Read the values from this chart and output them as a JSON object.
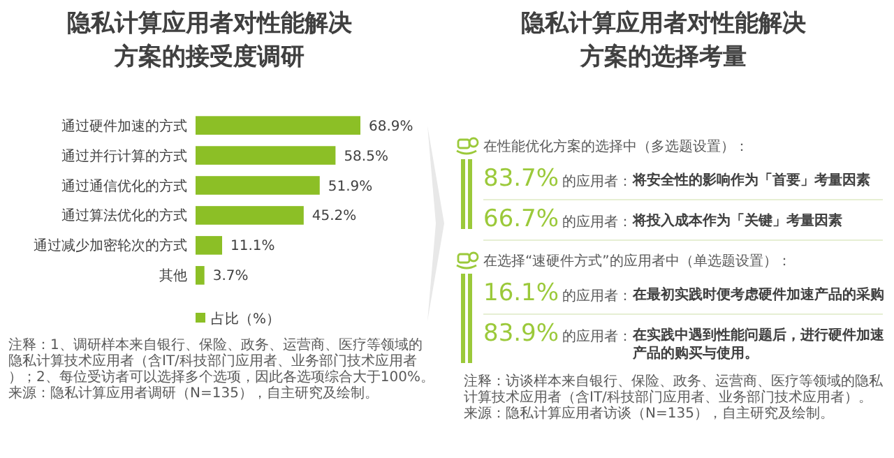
{
  "chart_data": [
    {
      "type": "bar",
      "orientation": "horizontal",
      "title": "隐私计算应用者对性能解决方案的接受度调研",
      "categories": [
        "通过硬件加速的方式",
        "通过并行计算的方式",
        "通过通信优化的方式",
        "通过算法优化的方式",
        "通过减少加密轮次的方式",
        "其他"
      ],
      "series": [
        {
          "name": "占比（%）",
          "color": "#8cbf26",
          "values": [
            68.9,
            58.5,
            51.9,
            45.2,
            11.1,
            3.7
          ],
          "value_labels": [
            "68.9%",
            "58.5%",
            "51.9%",
            "45.2%",
            "11.1%",
            "3.7%"
          ]
        }
      ],
      "legend": "bottom",
      "annotations": [
        "注释：1、调研样本来自银行、保险、政务、运营商、医疗等领域的隐私计算技术应用者（含IT/科技部门应用者、业务部门技术应用者）；2、每位受访者可以选择多个选项，因此各选项综合大于100%。",
        "来源：隐私计算应用者调研（N=135），自主研究及绘制。"
      ]
    },
    {
      "type": "other",
      "title": "隐私计算应用者对性能解决方案的选择考量",
      "annotations": [
        "在性能优化方案的选择中（多选题设置）：",
        "83.7%",
        "的应用者：",
        "将安全性的影响作为「首要」考量因素",
        "66.7%",
        "的应用者：",
        "将投入成本作为「关键」考量因素",
        "在选择“速硬件方式”的应用者中（单选题设置）：",
        "16.1%",
        "的应用者：",
        "在最初实践时便考虑硬件加速产品的采购",
        "83.9%",
        "的应用者：",
        "在实践中遇到性能问题后，进行硬件加速产品的购买与使用。",
        "注释：访谈样本来自银行、保险、政务、运营商、医疗等领域的隐私计算技术应用者（含IT/科技部门应用者、业务部门技术应用者）。",
        "来源：隐私计算应用者访谈（N=135），自主研究及绘制。"
      ]
    }
  ]
}
